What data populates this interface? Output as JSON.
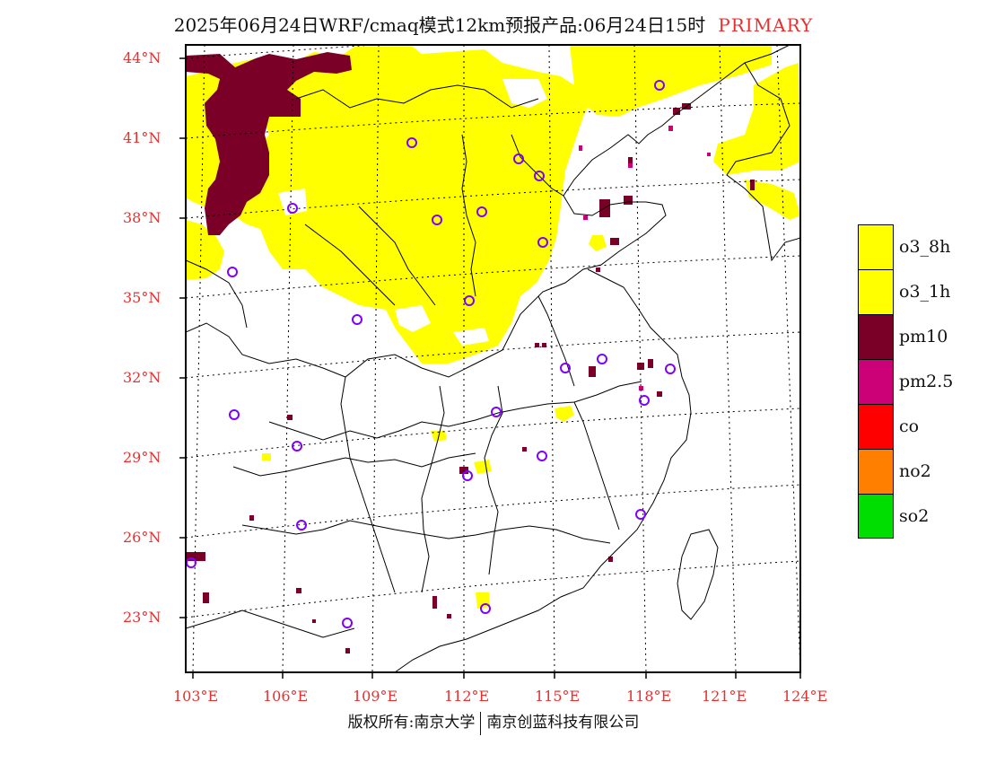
{
  "title": {
    "main": "2025年06月24日WRF/cmaq模式12km预报产品:06月24日15时",
    "tag": "PRIMARY"
  },
  "lat_labels": [
    "44°N",
    "41°N",
    "38°N",
    "35°N",
    "32°N",
    "29°N",
    "26°N",
    "23°N"
  ],
  "lon_labels": [
    "103°E",
    "106°E",
    "109°E",
    "112°E",
    "115°E",
    "118°E",
    "121°E",
    "124°E"
  ],
  "legend": [
    {
      "label": "o3_8h",
      "color": "#ffff00"
    },
    {
      "label": "o3_1h",
      "color": "#ffff00"
    },
    {
      "label": "pm10",
      "color": "#7a0028"
    },
    {
      "label": "pm2.5",
      "color": "#cc0077"
    },
    {
      "label": "co",
      "color": "#ff0000"
    },
    {
      "label": "no2",
      "color": "#ff8000"
    },
    {
      "label": "so2",
      "color": "#00dd00"
    }
  ],
  "footer": {
    "left": "版权所有:南京大学",
    "right": "南京创蓝科技有限公司"
  },
  "colors": {
    "ozone": "#ffff00",
    "pm10": "#7a0028",
    "pm25": "#cc0077",
    "station_marker": "#8000ff",
    "axis_label": "#e53030"
  }
}
